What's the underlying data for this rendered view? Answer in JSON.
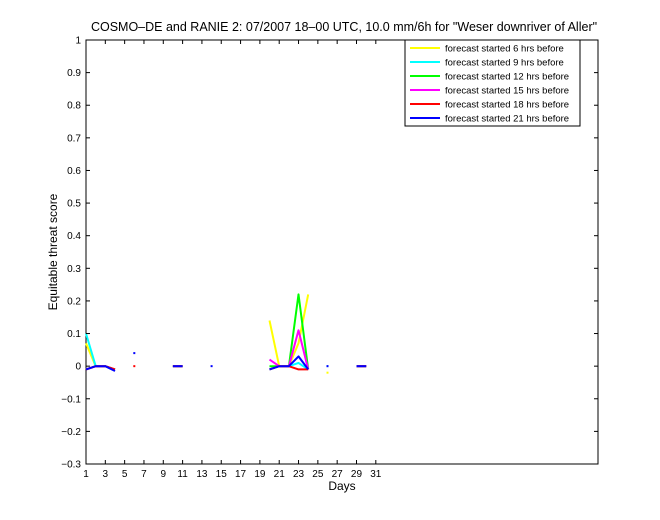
{
  "chart_data": {
    "type": "line",
    "title": "COSMO–DE and RANIE 2: 07/2007 18–00 UTC, 10.0 mm/6h for \"Weser downriver of Aller\"",
    "xlabel": "Days",
    "ylabel": "Equitable threat score",
    "xlim": [
      1,
      54
    ],
    "ylim": [
      -0.3,
      1
    ],
    "xticks": [
      1,
      3,
      5,
      7,
      9,
      11,
      13,
      15,
      17,
      19,
      21,
      23,
      25,
      27,
      29,
      31
    ],
    "yticks": [
      -0.3,
      -0.2,
      -0.1,
      0,
      0.1,
      0.2,
      0.3,
      0.4,
      0.5,
      0.6,
      0.7,
      0.8,
      0.9,
      1
    ],
    "ytick_labels": [
      "−0.3",
      "−0.2",
      "−0.1",
      "0",
      "0.1",
      "0.2",
      "0.3",
      "0.4",
      "0.5",
      "0.6",
      "0.7",
      "0.8",
      "0.9",
      "1"
    ],
    "grid": false,
    "legend_position": "top-right",
    "series": [
      {
        "name": "forecast started 6 hrs before",
        "color": "#ffff00",
        "segments": [
          [
            [
              1,
              0.07
            ],
            [
              2,
              0.0
            ],
            [
              3,
              0.0
            ],
            [
              4,
              -0.01
            ]
          ],
          [
            [
              10,
              0.0
            ],
            [
              11,
              0.0
            ]
          ],
          [
            [
              20,
              0.14
            ],
            [
              21,
              0.0
            ],
            [
              22,
              0.0
            ],
            [
              23,
              0.07
            ],
            [
              24,
              0.22
            ]
          ],
          [
            [
              26,
              -0.02
            ]
          ],
          [
            [
              29,
              0.0
            ],
            [
              30,
              0.0
            ]
          ]
        ]
      },
      {
        "name": "forecast started 9 hrs before",
        "color": "#00ffff",
        "segments": [
          [
            [
              1,
              0.1
            ],
            [
              2,
              0.0
            ],
            [
              3,
              0.0
            ],
            [
              4,
              -0.01
            ]
          ],
          [
            [
              10,
              0.0
            ],
            [
              11,
              0.0
            ]
          ],
          [
            [
              20,
              -0.01
            ],
            [
              21,
              0.0
            ],
            [
              22,
              0.0
            ],
            [
              23,
              0.01
            ],
            [
              24,
              -0.01
            ]
          ],
          [
            [
              26,
              0.0
            ]
          ],
          [
            [
              29,
              0.0
            ],
            [
              30,
              0.0
            ]
          ]
        ]
      },
      {
        "name": "forecast started 12 hrs before",
        "color": "#00ff00",
        "segments": [
          [
            [
              1,
              -0.01
            ],
            [
              2,
              0.0
            ],
            [
              3,
              0.0
            ],
            [
              4,
              -0.01
            ]
          ],
          [
            [
              10,
              0.0
            ],
            [
              11,
              0.0
            ]
          ],
          [
            [
              20,
              0.0
            ],
            [
              21,
              0.0
            ],
            [
              22,
              0.0
            ],
            [
              23,
              0.22
            ],
            [
              24,
              -0.01
            ]
          ],
          [
            [
              29,
              0.0
            ],
            [
              30,
              0.0
            ]
          ]
        ]
      },
      {
        "name": "forecast started 15 hrs before",
        "color": "#ff00ff",
        "segments": [
          [
            [
              1,
              -0.01
            ],
            [
              2,
              0.0
            ],
            [
              3,
              0.0
            ],
            [
              4,
              -0.01
            ]
          ],
          [
            [
              10,
              0.0
            ],
            [
              11,
              0.0
            ]
          ],
          [
            [
              20,
              0.02
            ],
            [
              21,
              0.0
            ],
            [
              22,
              0.0
            ],
            [
              23,
              0.11
            ],
            [
              24,
              -0.01
            ]
          ],
          [
            [
              29,
              0.0
            ],
            [
              30,
              0.0
            ]
          ]
        ]
      },
      {
        "name": "forecast started 18 hrs before",
        "color": "#ff0000",
        "segments": [
          [
            [
              1,
              -0.01
            ],
            [
              2,
              0.0
            ],
            [
              3,
              0.0
            ],
            [
              4,
              -0.01
            ]
          ],
          [
            [
              6,
              0.0
            ]
          ],
          [
            [
              10,
              0.0
            ],
            [
              11,
              0.0
            ]
          ],
          [
            [
              20,
              -0.01
            ],
            [
              21,
              0.0
            ],
            [
              22,
              0.0
            ],
            [
              23,
              -0.01
            ],
            [
              24,
              -0.01
            ]
          ],
          [
            [
              29,
              0.0
            ],
            [
              30,
              0.0
            ]
          ]
        ]
      },
      {
        "name": "forecast started 21 hrs before",
        "color": "#0000ff",
        "segments": [
          [
            [
              1,
              -0.01
            ],
            [
              2,
              0.0
            ],
            [
              3,
              0.0
            ],
            [
              4,
              -0.015
            ]
          ],
          [
            [
              6,
              0.04
            ]
          ],
          [
            [
              10,
              0.0
            ],
            [
              11,
              0.0
            ]
          ],
          [
            [
              14,
              0.0
            ]
          ],
          [
            [
              20,
              -0.01
            ],
            [
              21,
              0.0
            ],
            [
              22,
              0.0
            ],
            [
              23,
              0.03
            ],
            [
              24,
              -0.01
            ]
          ],
          [
            [
              26,
              0.0
            ]
          ],
          [
            [
              29,
              0.0
            ],
            [
              30,
              0.0
            ]
          ]
        ]
      }
    ]
  }
}
